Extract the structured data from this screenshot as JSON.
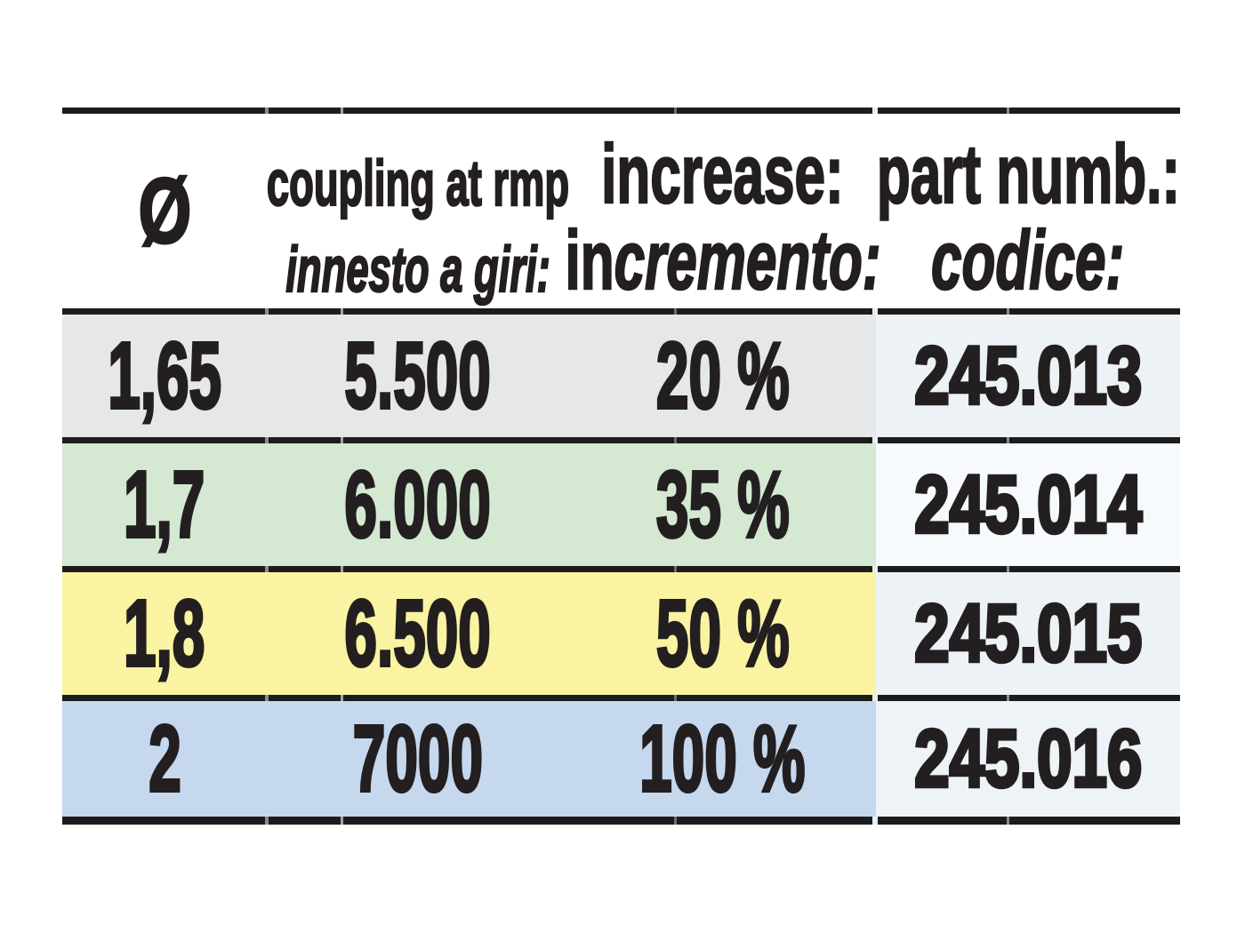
{
  "header": {
    "col1": {
      "symbol": "Ø"
    },
    "col2": {
      "line1": "coupling at rmp",
      "line2": "innesto a giri:"
    },
    "col3": {
      "line1": "increase:",
      "line2_roman": "in",
      "line2_italic": "cremento:"
    },
    "col4": {
      "line1": "part numb.:",
      "line2": "codice:"
    }
  },
  "rows": [
    {
      "diameter": "1,65",
      "coupling": "5.500",
      "increase": "20 %",
      "part_number": "245.013",
      "row_color": "#e6e7e8",
      "part_bg": "#edf2f7"
    },
    {
      "diameter": "1,7",
      "coupling": "6.000",
      "increase": "35 %",
      "part_number": "245.014",
      "row_color": "#d4e8d2",
      "part_bg": "#f7fafc"
    },
    {
      "diameter": "1,8",
      "coupling": "6.500",
      "increase": "50 %",
      "part_number": "245.015",
      "row_color": "#faf3a2",
      "part_bg": "#edf2f7"
    },
    {
      "diameter": "2",
      "coupling": "7000",
      "increase": "100 %",
      "part_number": "245.016",
      "row_color": "#c5d8ed",
      "part_bg": "#eef3f8"
    }
  ],
  "colors": {
    "border": "#1c1c1c",
    "text": "#231f20",
    "header_bg": "#ffffff"
  }
}
